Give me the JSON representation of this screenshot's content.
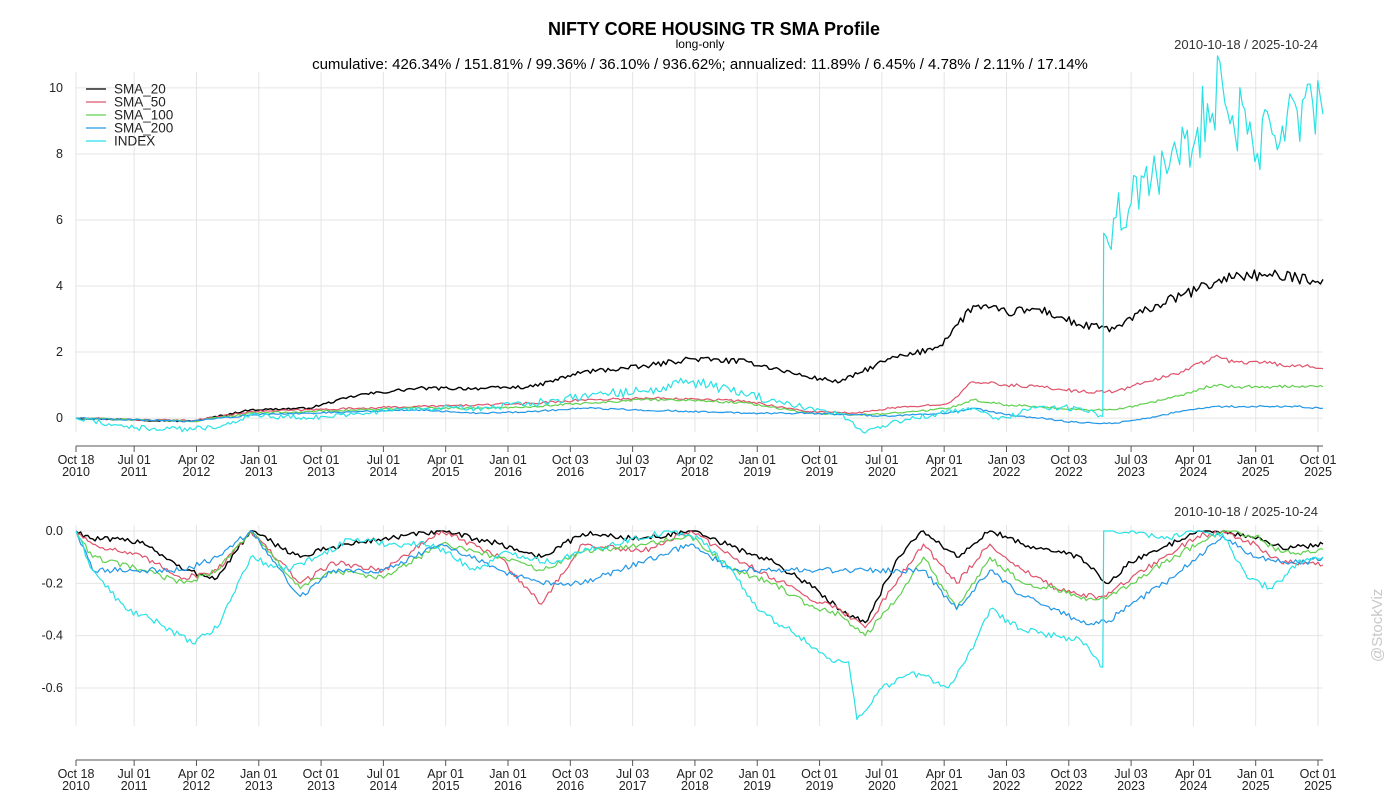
{
  "chart_data": [
    {
      "type": "line",
      "title": "NIFTY CORE HOUSING TR SMA Profile",
      "subtitle": "long-only",
      "summary": "cumulative: 426.34% / 151.81% / 99.36% / 36.10% / 936.62%; annualized: 11.89% / 6.45% / 4.78% / 2.11% / 17.14%",
      "date_range": "2010-10-18 / 2025-10-24",
      "ylim": [
        -0.3,
        10.3
      ],
      "y_ticks": [
        0,
        2,
        4,
        6,
        8,
        10
      ],
      "y_tick_labels": [
        "0",
        "2",
        "4",
        "6",
        "8",
        "10"
      ],
      "grid": true,
      "legend_position": "top-left",
      "series": [
        {
          "name": "SMA_20",
          "color": "#000000",
          "x": [
            2010.8,
            2011.5,
            2012.2,
            2012.9,
            2013.6,
            2014.2,
            2014.9,
            2015.7,
            2016.3,
            2016.9,
            2017.6,
            2018.2,
            2018.9,
            2019.6,
            2020.0,
            2020.6,
            2020.9,
            2021.2,
            2021.6,
            2022.0,
            2022.4,
            2022.9,
            2023.3,
            2023.7,
            2024.1,
            2024.5,
            2024.8,
            2025.2,
            2025.5,
            2025.81
          ],
          "values": [
            0,
            -0.05,
            -0.1,
            0.25,
            0.3,
            0.7,
            0.9,
            0.9,
            0.95,
            1.4,
            1.55,
            1.8,
            1.7,
            1.25,
            1.1,
            1.8,
            1.95,
            2.2,
            3.4,
            3.2,
            3.3,
            2.8,
            2.7,
            3.3,
            3.7,
            4.1,
            4.35,
            4.3,
            4.25,
            4.2
          ]
        },
        {
          "name": "SMA_50",
          "color": "#df536b",
          "x": [
            2010.8,
            2011.5,
            2012.2,
            2012.9,
            2013.6,
            2014.2,
            2014.9,
            2015.7,
            2016.3,
            2016.9,
            2017.6,
            2018.2,
            2018.9,
            2019.6,
            2020.2,
            2020.6,
            2020.9,
            2021.3,
            2021.6,
            2022.0,
            2022.4,
            2022.9,
            2023.3,
            2023.7,
            2024.1,
            2024.5,
            2024.8,
            2025.2,
            2025.5,
            2025.81
          ],
          "values": [
            0,
            -0.05,
            -0.08,
            0.2,
            0.25,
            0.3,
            0.35,
            0.4,
            0.45,
            0.55,
            0.6,
            0.6,
            0.5,
            0.2,
            0.15,
            0.3,
            0.35,
            0.45,
            1.1,
            1.0,
            0.95,
            0.8,
            0.8,
            1.1,
            1.4,
            1.85,
            1.7,
            1.65,
            1.6,
            1.5
          ]
        },
        {
          "name": "SMA_100",
          "color": "#61d04f",
          "x": [
            2010.8,
            2011.5,
            2012.2,
            2012.9,
            2013.6,
            2014.2,
            2014.9,
            2015.7,
            2016.3,
            2016.9,
            2017.6,
            2018.2,
            2018.9,
            2019.6,
            2020.2,
            2020.6,
            2020.9,
            2021.3,
            2021.6,
            2022.0,
            2022.4,
            2022.9,
            2023.3,
            2023.7,
            2024.1,
            2024.5,
            2024.8,
            2025.2,
            2025.5,
            2025.81
          ],
          "values": [
            0,
            -0.05,
            -0.1,
            0.15,
            0.2,
            0.25,
            0.3,
            0.3,
            0.35,
            0.45,
            0.55,
            0.55,
            0.45,
            0.15,
            0.1,
            0.15,
            0.2,
            0.3,
            0.55,
            0.4,
            0.35,
            0.25,
            0.25,
            0.45,
            0.7,
            1.0,
            0.95,
            0.95,
            0.95,
            0.95
          ]
        },
        {
          "name": "SMA_200",
          "color": "#2297e6",
          "x": [
            2010.8,
            2011.5,
            2012.2,
            2012.9,
            2013.6,
            2014.2,
            2014.9,
            2015.7,
            2016.3,
            2016.9,
            2017.6,
            2018.2,
            2018.9,
            2019.6,
            2020.2,
            2020.6,
            2020.9,
            2021.3,
            2021.6,
            2022.0,
            2022.4,
            2022.9,
            2023.3,
            2023.7,
            2024.1,
            2024.5,
            2024.8,
            2025.2,
            2025.5,
            2025.81
          ],
          "values": [
            0,
            -0.05,
            -0.1,
            0.1,
            0.15,
            0.2,
            0.25,
            0.15,
            0.2,
            0.3,
            0.25,
            0.2,
            0.15,
            0.15,
            0.1,
            0.05,
            0.1,
            0.15,
            0.3,
            0.1,
            0.0,
            -0.15,
            -0.15,
            0.0,
            0.2,
            0.35,
            0.35,
            0.35,
            0.35,
            0.3
          ]
        },
        {
          "name": "INDEX",
          "color": "#28e2e5",
          "x": [
            2010.8,
            2011.5,
            2012.2,
            2012.6,
            2012.9,
            2013.6,
            2014.2,
            2014.9,
            2015.7,
            2016.3,
            2016.9,
            2017.6,
            2018.2,
            2018.9,
            2019.6,
            2020.0,
            2020.3,
            2020.6,
            2020.9,
            2021.2,
            2021.6,
            2021.9,
            2022.4,
            2022.9,
            2023.16,
            2023.17,
            2023.5,
            2023.9,
            2024.3,
            2024.6,
            2024.9,
            2025.2,
            2025.5,
            2025.81
          ],
          "values": [
            0,
            -0.3,
            -0.35,
            -0.2,
            0.1,
            0.0,
            0.15,
            0.3,
            0.3,
            0.45,
            0.7,
            0.8,
            1.1,
            0.7,
            0.3,
            0.15,
            -0.45,
            -0.15,
            0.0,
            0.15,
            0.3,
            -0.05,
            0.35,
            0.3,
            0.05,
            5.6,
            6.5,
            7.8,
            8.8,
            10.1,
            8.6,
            8.6,
            9.3,
            9.2
          ]
        }
      ]
    },
    {
      "type": "line",
      "date_range": "2010-10-18 / 2025-10-24",
      "ylim": [
        -0.73,
        0.0
      ],
      "y_ticks": [
        0,
        -0.2,
        -0.4,
        -0.6
      ],
      "y_tick_labels": [
        "0.0",
        "-0.2",
        "-0.4",
        "-0.6"
      ],
      "grid": true,
      "series": [
        {
          "name": "SMA_20",
          "color": "#000000",
          "x": [
            2010.8,
            2011.0,
            2011.6,
            2012.1,
            2012.5,
            2012.9,
            2013.5,
            2013.9,
            2014.5,
            2015.2,
            2015.9,
            2016.4,
            2016.9,
            2017.6,
            2018.2,
            2018.7,
            2019.2,
            2019.6,
            2020.0,
            2020.3,
            2020.7,
            2021.0,
            2021.4,
            2021.8,
            2022.2,
            2022.6,
            2022.9,
            2023.2,
            2023.5,
            2023.9,
            2024.3,
            2024.6,
            2025.0,
            2025.3,
            2025.6,
            2025.81
          ],
          "values": [
            0,
            -0.03,
            -0.04,
            -0.15,
            -0.18,
            0,
            -0.1,
            -0.06,
            -0.03,
            0,
            -0.05,
            -0.1,
            -0.01,
            -0.03,
            0,
            -0.06,
            -0.12,
            -0.2,
            -0.3,
            -0.35,
            -0.1,
            0,
            -0.1,
            0,
            -0.05,
            -0.08,
            -0.1,
            -0.2,
            -0.12,
            -0.06,
            0,
            0,
            -0.03,
            -0.06,
            -0.06,
            -0.05
          ]
        },
        {
          "name": "SMA_50",
          "color": "#df536b",
          "x": [
            2010.8,
            2011.0,
            2011.6,
            2012.1,
            2012.5,
            2012.9,
            2013.5,
            2013.9,
            2014.5,
            2015.2,
            2015.9,
            2016.4,
            2016.9,
            2017.6,
            2018.2,
            2018.7,
            2019.2,
            2019.6,
            2020.0,
            2020.3,
            2020.7,
            2021.0,
            2021.4,
            2021.8,
            2022.2,
            2022.6,
            2022.9,
            2023.2,
            2023.5,
            2023.9,
            2024.3,
            2024.6,
            2025.0,
            2025.3,
            2025.6,
            2025.81
          ],
          "values": [
            0,
            -0.05,
            -0.1,
            -0.18,
            -0.15,
            0,
            -0.2,
            -0.12,
            -0.15,
            0,
            -0.1,
            -0.28,
            -0.05,
            -0.08,
            0,
            -0.1,
            -0.18,
            -0.25,
            -0.3,
            -0.37,
            -0.18,
            -0.05,
            -0.2,
            -0.05,
            -0.15,
            -0.22,
            -0.25,
            -0.25,
            -0.18,
            -0.1,
            -0.02,
            0,
            -0.05,
            -0.12,
            -0.12,
            -0.13
          ]
        },
        {
          "name": "SMA_100",
          "color": "#61d04f",
          "x": [
            2010.8,
            2011.0,
            2011.6,
            2012.1,
            2012.5,
            2012.9,
            2013.5,
            2013.9,
            2014.5,
            2015.2,
            2015.9,
            2016.4,
            2016.9,
            2017.6,
            2018.2,
            2018.7,
            2019.2,
            2019.6,
            2020.0,
            2020.3,
            2020.7,
            2021.0,
            2021.4,
            2021.8,
            2022.2,
            2022.6,
            2022.9,
            2023.2,
            2023.5,
            2023.9,
            2024.3,
            2024.6,
            2025.0,
            2025.3,
            2025.6,
            2025.81
          ],
          "values": [
            0,
            -0.1,
            -0.15,
            -0.2,
            -0.15,
            0,
            -0.22,
            -0.15,
            -0.18,
            -0.05,
            -0.1,
            -0.15,
            -0.08,
            -0.05,
            -0.02,
            -0.15,
            -0.2,
            -0.28,
            -0.32,
            -0.4,
            -0.25,
            -0.1,
            -0.3,
            -0.1,
            -0.2,
            -0.22,
            -0.26,
            -0.26,
            -0.2,
            -0.12,
            -0.05,
            0,
            -0.02,
            -0.08,
            -0.08,
            -0.07
          ]
        },
        {
          "name": "SMA_200",
          "color": "#2297e6",
          "x": [
            2010.8,
            2011.0,
            2011.6,
            2012.1,
            2012.5,
            2012.9,
            2013.5,
            2013.9,
            2014.5,
            2015.2,
            2015.9,
            2016.4,
            2016.9,
            2017.6,
            2018.2,
            2018.7,
            2019.2,
            2019.6,
            2020.0,
            2020.3,
            2020.7,
            2021.0,
            2021.4,
            2021.8,
            2022.2,
            2022.6,
            2022.9,
            2023.2,
            2023.5,
            2023.9,
            2024.3,
            2024.6,
            2025.0,
            2025.3,
            2025.6,
            2025.81
          ],
          "values": [
            0,
            -0.15,
            -0.15,
            -0.15,
            -0.1,
            0,
            -0.25,
            -0.15,
            -0.15,
            -0.05,
            -0.15,
            -0.2,
            -0.2,
            -0.12,
            -0.05,
            -0.15,
            -0.15,
            -0.15,
            -0.15,
            -0.15,
            -0.15,
            -0.15,
            -0.3,
            -0.15,
            -0.25,
            -0.3,
            -0.35,
            -0.35,
            -0.28,
            -0.2,
            -0.1,
            -0.02,
            -0.1,
            -0.12,
            -0.12,
            -0.1
          ]
        },
        {
          "name": "INDEX",
          "color": "#28e2e5",
          "x": [
            2010.8,
            2011.0,
            2011.4,
            2011.8,
            2012.2,
            2012.5,
            2012.9,
            2013.3,
            2013.7,
            2014.1,
            2014.6,
            2015.1,
            2015.6,
            2016.0,
            2016.5,
            2016.9,
            2017.5,
            2018.0,
            2018.3,
            2018.7,
            2019.0,
            2019.5,
            2019.9,
            2020.1,
            2020.2,
            2020.5,
            2020.8,
            2021.0,
            2021.3,
            2021.6,
            2021.8,
            2022.2,
            2022.6,
            2022.9,
            2023.16,
            2023.17,
            2023.5,
            2023.9,
            2024.2,
            2024.6,
            2024.9,
            2025.2,
            2025.5,
            2025.81
          ],
          "values": [
            0,
            -0.15,
            -0.3,
            -0.35,
            -0.43,
            -0.37,
            -0.1,
            -0.15,
            -0.1,
            -0.03,
            -0.05,
            -0.05,
            -0.15,
            -0.08,
            -0.12,
            -0.08,
            -0.03,
            0,
            -0.03,
            -0.15,
            -0.3,
            -0.4,
            -0.5,
            -0.5,
            -0.72,
            -0.6,
            -0.55,
            -0.55,
            -0.6,
            -0.45,
            -0.3,
            -0.38,
            -0.4,
            -0.42,
            -0.52,
            0,
            0,
            -0.03,
            0,
            -0.01,
            -0.18,
            -0.22,
            -0.12,
            -0.1
          ]
        }
      ]
    }
  ],
  "x_axis": {
    "ticks": [
      2010.8,
      2011.5,
      2012.25,
      2013.0,
      2013.75,
      2014.5,
      2015.25,
      2016.0,
      2016.75,
      2017.5,
      2018.25,
      2019.0,
      2019.75,
      2020.5,
      2021.25,
      2022.0,
      2022.75,
      2023.5,
      2024.25,
      2025.0,
      2025.75
    ],
    "tick_labels": [
      [
        "Oct 18",
        "2010"
      ],
      [
        "Jul 01",
        "2011"
      ],
      [
        "Apr 02",
        "2012"
      ],
      [
        "Jan 01",
        "2013"
      ],
      [
        "Oct 01",
        "2013"
      ],
      [
        "Jul 01",
        "2014"
      ],
      [
        "Apr 01",
        "2015"
      ],
      [
        "Jan 01",
        "2016"
      ],
      [
        "Oct 03",
        "2016"
      ],
      [
        "Jul 03",
        "2017"
      ],
      [
        "Apr 02",
        "2018"
      ],
      [
        "Jan 01",
        "2019"
      ],
      [
        "Oct 01",
        "2019"
      ],
      [
        "Jul 01",
        "2020"
      ],
      [
        "Apr 01",
        "2021"
      ],
      [
        "Jan 03",
        "2022"
      ],
      [
        "Oct 03",
        "2022"
      ],
      [
        "Jul 03",
        "2023"
      ],
      [
        "Apr 01",
        "2024"
      ],
      [
        "Jan 01",
        "2025"
      ],
      [
        "Oct 01",
        "2025"
      ]
    ]
  },
  "watermark": "@StockViz"
}
